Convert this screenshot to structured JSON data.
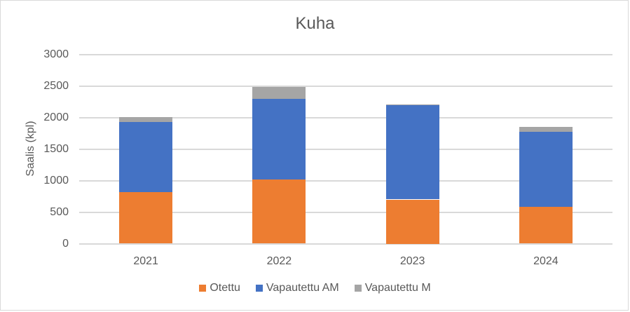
{
  "chart_data": {
    "type": "bar",
    "stacked": true,
    "title": "Kuha",
    "xlabel": "",
    "ylabel": "Saalis (kpl)",
    "ylim": [
      0,
      3000
    ],
    "yticks": [
      0,
      500,
      1000,
      1500,
      2000,
      2500,
      3000
    ],
    "grid": true,
    "legend_position": "bottom",
    "categories": [
      "2021",
      "2022",
      "2023",
      "2024"
    ],
    "series": [
      {
        "name": "Otettu",
        "color": "#ed7d31",
        "values": [
          820,
          1020,
          700,
          580
        ]
      },
      {
        "name": "Vapautettu AM",
        "color": "#4472c4",
        "values": [
          1110,
          1270,
          1490,
          1190
        ]
      },
      {
        "name": "Vapautettu M",
        "color": "#a5a5a5",
        "values": [
          80,
          190,
          20,
          75
        ]
      }
    ]
  }
}
